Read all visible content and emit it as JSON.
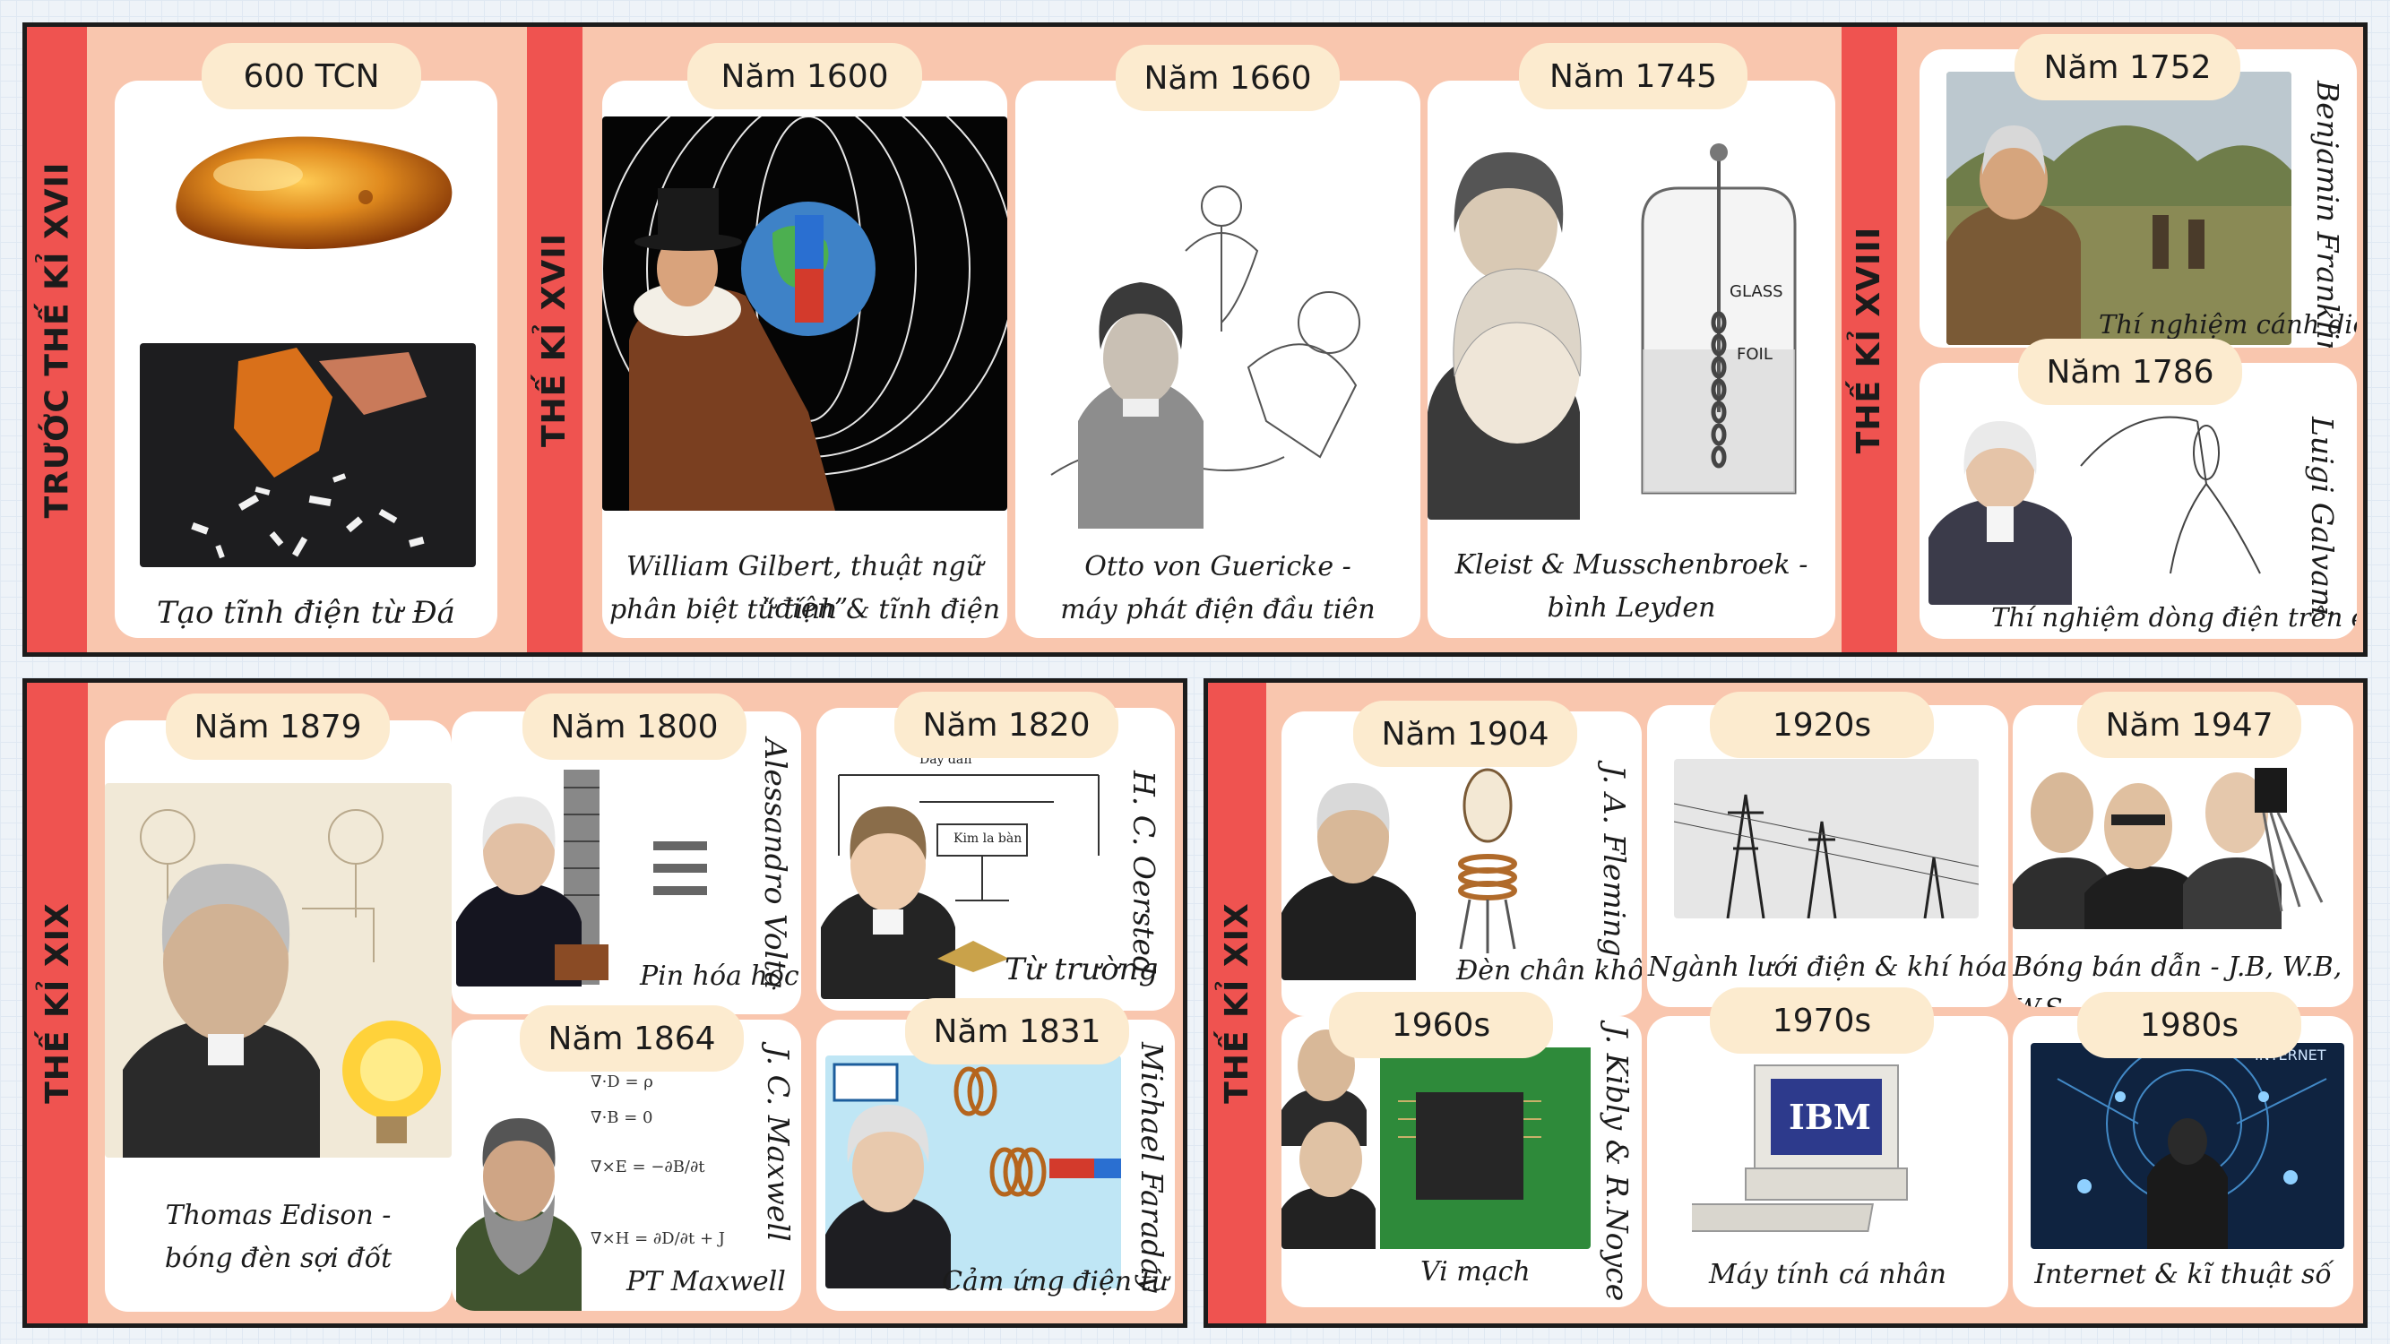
{
  "eras": {
    "pre17": "TRƯỚC THẾ KỈ XVII",
    "c17": "THẾ KỈ XVII",
    "c18": "THẾ KỈ XVIII",
    "c19a": "THẾ KỈ XIX",
    "c19b": "THẾ KỈ XIX"
  },
  "cards": {
    "amber": {
      "date": "600 TCN",
      "caption": "Tạo tĩnh điện từ Đá Amber"
    },
    "gilbert": {
      "date": "Năm 1600",
      "line1": "William Gilbert, thuật ngữ “điện”",
      "line2": "phân biệt từ tính & tĩnh điện"
    },
    "guericke": {
      "date": "Năm 1660",
      "line1": "Otto von Guericke -",
      "line2": "máy phát điện đầu tiên"
    },
    "leyden": {
      "date": "Năm 1745",
      "line1": "Kleist & Musschenbroek -",
      "line2": "bình Leyden",
      "glass": "GLASS",
      "foil": "FOIL"
    },
    "franklin": {
      "date": "Năm 1752",
      "name": "Benjamin Franklin",
      "caption": "Thí nghiệm cánh diều"
    },
    "galvani": {
      "date": "Năm 1786",
      "name": "Luigi Galvani",
      "caption": "Thí nghiệm dòng điện trên ếch"
    },
    "edison": {
      "date": "Năm 1879",
      "line1": "Thomas Edison -",
      "line2": "bóng đèn sợi đốt"
    },
    "volta": {
      "date": "Năm 1800",
      "name": "Alessandro Volta",
      "caption": "Pin hóa học"
    },
    "oersted": {
      "date": "Năm 1820",
      "name": "H. C. Oersted",
      "caption": "Từ trường",
      "wire": "Dây dẫn",
      "compass": "Kim la bàn"
    },
    "maxwell": {
      "date": "Năm 1864",
      "name": "J. C. Maxwell",
      "caption": "PT Maxwell"
    },
    "faraday": {
      "date": "Năm 1831",
      "name": "Michael Faraday",
      "caption": "Cảm ứng điện từ"
    },
    "fleming": {
      "date": "Năm 1904",
      "name": "J. A. Fleming",
      "caption": "Đèn chân không"
    },
    "grid": {
      "date": "1920s",
      "caption": "Ngành lưới điện & khí hóa"
    },
    "transistor": {
      "date": "Năm 1947",
      "caption": "Bóng bán dẫn - J.B, W.B, W.S"
    },
    "chip": {
      "date": "1960s",
      "name": "J. Kibly & R.Noyce",
      "caption": "Vi mạch"
    },
    "pc": {
      "date": "1970s",
      "caption": "Máy tính cá nhân",
      "brand": "IBM"
    },
    "internet": {
      "date": "1980s",
      "caption": "Internet & kĩ thuật số",
      "overlay": "INTERNET"
    }
  },
  "colors": {
    "panel": "#f9c6ae",
    "era_bar": "#ef5350",
    "pill": "#fcebcf",
    "card": "#ffffff"
  }
}
